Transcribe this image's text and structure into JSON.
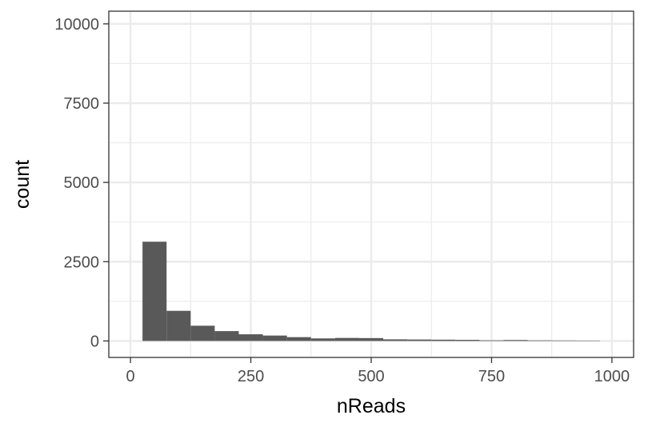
{
  "chart_data": {
    "type": "bar",
    "subtype": "histogram",
    "xlabel": "nReads",
    "ylabel": "count",
    "xlim": [
      -45,
      1045
    ],
    "ylim": [
      -520,
      10400
    ],
    "x_ticks": [
      0,
      250,
      500,
      750,
      1000
    ],
    "x_tick_labels": [
      "0",
      "250",
      "500",
      "750",
      "1000"
    ],
    "y_ticks": [
      0,
      2500,
      5000,
      7500,
      10000
    ],
    "y_tick_labels": [
      "0",
      "2500",
      "5000",
      "7500",
      "10000"
    ],
    "bin_width": 50,
    "bins": [
      {
        "x0": 25,
        "x1": 75,
        "count": 3130
      },
      {
        "x0": 75,
        "x1": 125,
        "count": 950
      },
      {
        "x0": 125,
        "x1": 175,
        "count": 480
      },
      {
        "x0": 175,
        "x1": 225,
        "count": 310
      },
      {
        "x0": 225,
        "x1": 275,
        "count": 210
      },
      {
        "x0": 275,
        "x1": 325,
        "count": 170
      },
      {
        "x0": 325,
        "x1": 375,
        "count": 120
      },
      {
        "x0": 375,
        "x1": 425,
        "count": 80
      },
      {
        "x0": 425,
        "x1": 475,
        "count": 95
      },
      {
        "x0": 475,
        "x1": 525,
        "count": 90
      },
      {
        "x0": 525,
        "x1": 575,
        "count": 50
      },
      {
        "x0": 575,
        "x1": 625,
        "count": 45
      },
      {
        "x0": 625,
        "x1": 675,
        "count": 40
      },
      {
        "x0": 675,
        "x1": 725,
        "count": 35
      },
      {
        "x0": 725,
        "x1": 775,
        "count": 20
      },
      {
        "x0": 775,
        "x1": 825,
        "count": 30
      },
      {
        "x0": 825,
        "x1": 875,
        "count": 18
      },
      {
        "x0": 875,
        "x1": 925,
        "count": 15
      },
      {
        "x0": 925,
        "x1": 975,
        "count": 12
      }
    ],
    "grid": true,
    "colors": {
      "bar": "#595959",
      "grid": "#ebebeb",
      "panel_border": "#333333",
      "tick_text": "#4d4d4d",
      "title_text": "#000000"
    }
  }
}
